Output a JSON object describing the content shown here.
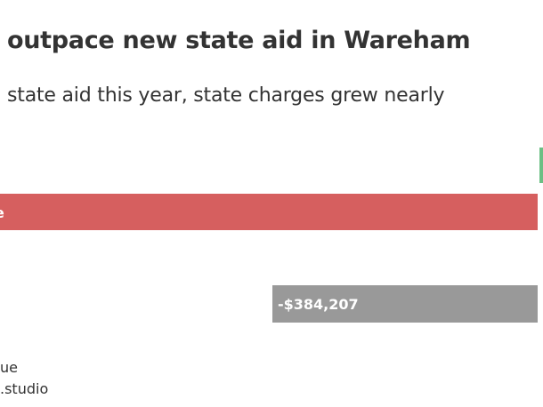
{
  "header": {
    "title": "outpace new state aid in Wareham",
    "subtitle": "state aid this year, state charges grew nearly"
  },
  "footer": {
    "source": "ue",
    "credit": ".studio"
  },
  "colors": {
    "aid": "#6cbf84",
    "charges": "#d65f5f",
    "net": "#999999"
  },
  "chart_data": {
    "type": "bar",
    "orientation": "horizontal",
    "bars": [
      {
        "value_label": "",
        "color": "#6cbf84"
      },
      {
        "value_label": "",
        "color": "#d65f5f"
      },
      {
        "value_label": "-$384,207",
        "color": "#999999"
      }
    ],
    "net_value": -384207
  }
}
